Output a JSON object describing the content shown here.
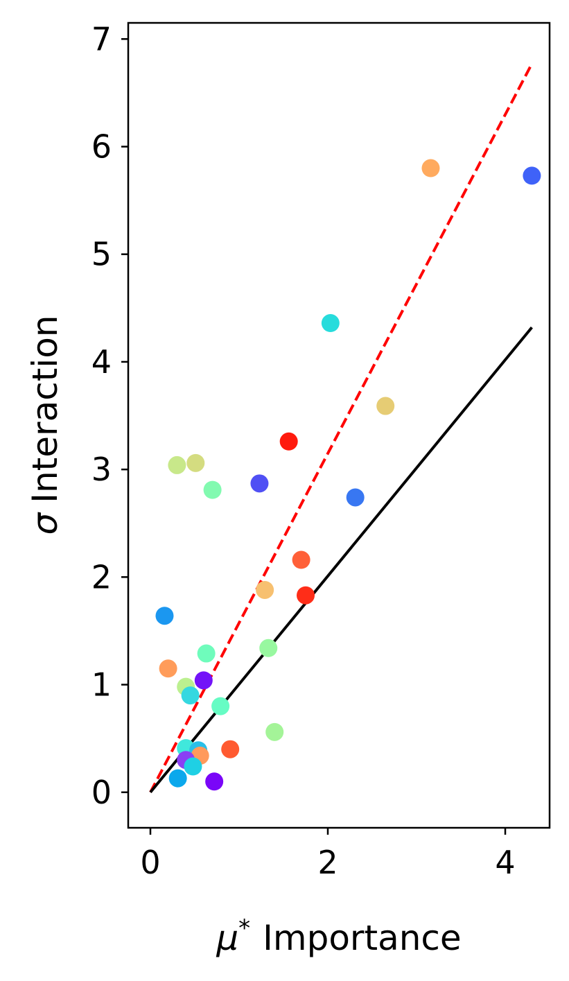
{
  "chart_data": {
    "type": "scatter",
    "title": "",
    "xlabel_symbol": "μ",
    "xlabel_superscript": "*",
    "xlabel_text": "Importance",
    "ylabel_symbol": "σ",
    "ylabel_text": "Interaction",
    "xlim": [
      -0.25,
      4.5
    ],
    "ylim": [
      -0.33,
      7.15
    ],
    "x_ticks": [
      0,
      2,
      4
    ],
    "y_ticks": [
      0,
      1,
      2,
      3,
      4,
      5,
      6,
      7
    ],
    "x_tick_labels": [
      "0",
      "2",
      "4"
    ],
    "y_tick_labels": [
      "0",
      "1",
      "2",
      "3",
      "4",
      "5",
      "6",
      "7"
    ],
    "grid": false,
    "legend": "none",
    "reference_lines": [
      {
        "style": "dashed",
        "color": "#ff0000",
        "x": [
          0,
          4.3
        ],
        "y": [
          0,
          6.77
        ]
      },
      {
        "style": "solid",
        "color": "#000000",
        "x": [
          0,
          4.3
        ],
        "y": [
          0,
          4.32
        ]
      }
    ],
    "points": [
      {
        "x": 4.3,
        "y": 5.73,
        "color": "#3f62f8"
      },
      {
        "x": 3.16,
        "y": 5.8,
        "color": "#ffaa5e"
      },
      {
        "x": 2.03,
        "y": 4.36,
        "color": "#27dcdc"
      },
      {
        "x": 2.65,
        "y": 3.59,
        "color": "#e6cc74"
      },
      {
        "x": 1.56,
        "y": 3.26,
        "color": "#ff1a0d"
      },
      {
        "x": 1.23,
        "y": 2.87,
        "color": "#5050f4"
      },
      {
        "x": 2.31,
        "y": 2.74,
        "color": "#3877f2"
      },
      {
        "x": 0.3,
        "y": 3.04,
        "color": "#c8e88a"
      },
      {
        "x": 0.51,
        "y": 3.06,
        "color": "#d4dc80"
      },
      {
        "x": 0.7,
        "y": 2.81,
        "color": "#82fab0"
      },
      {
        "x": 1.7,
        "y": 2.16,
        "color": "#ff6038"
      },
      {
        "x": 1.75,
        "y": 1.83,
        "color": "#ff2d18"
      },
      {
        "x": 1.29,
        "y": 1.88,
        "color": "#f7c070"
      },
      {
        "x": 0.16,
        "y": 1.64,
        "color": "#1b97f0"
      },
      {
        "x": 0.63,
        "y": 1.29,
        "color": "#6ffcbc"
      },
      {
        "x": 1.33,
        "y": 1.34,
        "color": "#98f8a0"
      },
      {
        "x": 0.2,
        "y": 1.15,
        "color": "#ff9c5a"
      },
      {
        "x": 0.6,
        "y": 1.04,
        "color": "#7313f8"
      },
      {
        "x": 0.4,
        "y": 0.98,
        "color": "#bcf090"
      },
      {
        "x": 0.45,
        "y": 0.9,
        "color": "#35d8e0"
      },
      {
        "x": 0.79,
        "y": 0.8,
        "color": "#66fcc4"
      },
      {
        "x": 1.4,
        "y": 0.56,
        "color": "#a4f498"
      },
      {
        "x": 0.4,
        "y": 0.41,
        "color": "#40e8dc"
      },
      {
        "x": 0.54,
        "y": 0.39,
        "color": "#29bfe8"
      },
      {
        "x": 0.9,
        "y": 0.4,
        "color": "#ff5a30"
      },
      {
        "x": 0.56,
        "y": 0.34,
        "color": "#ff9a5c"
      },
      {
        "x": 0.4,
        "y": 0.3,
        "color": "#8a40f4"
      },
      {
        "x": 0.48,
        "y": 0.24,
        "color": "#1fd0e4"
      },
      {
        "x": 0.31,
        "y": 0.13,
        "color": "#0ba8ec"
      },
      {
        "x": 0.72,
        "y": 0.1,
        "color": "#7a06f8"
      }
    ]
  }
}
